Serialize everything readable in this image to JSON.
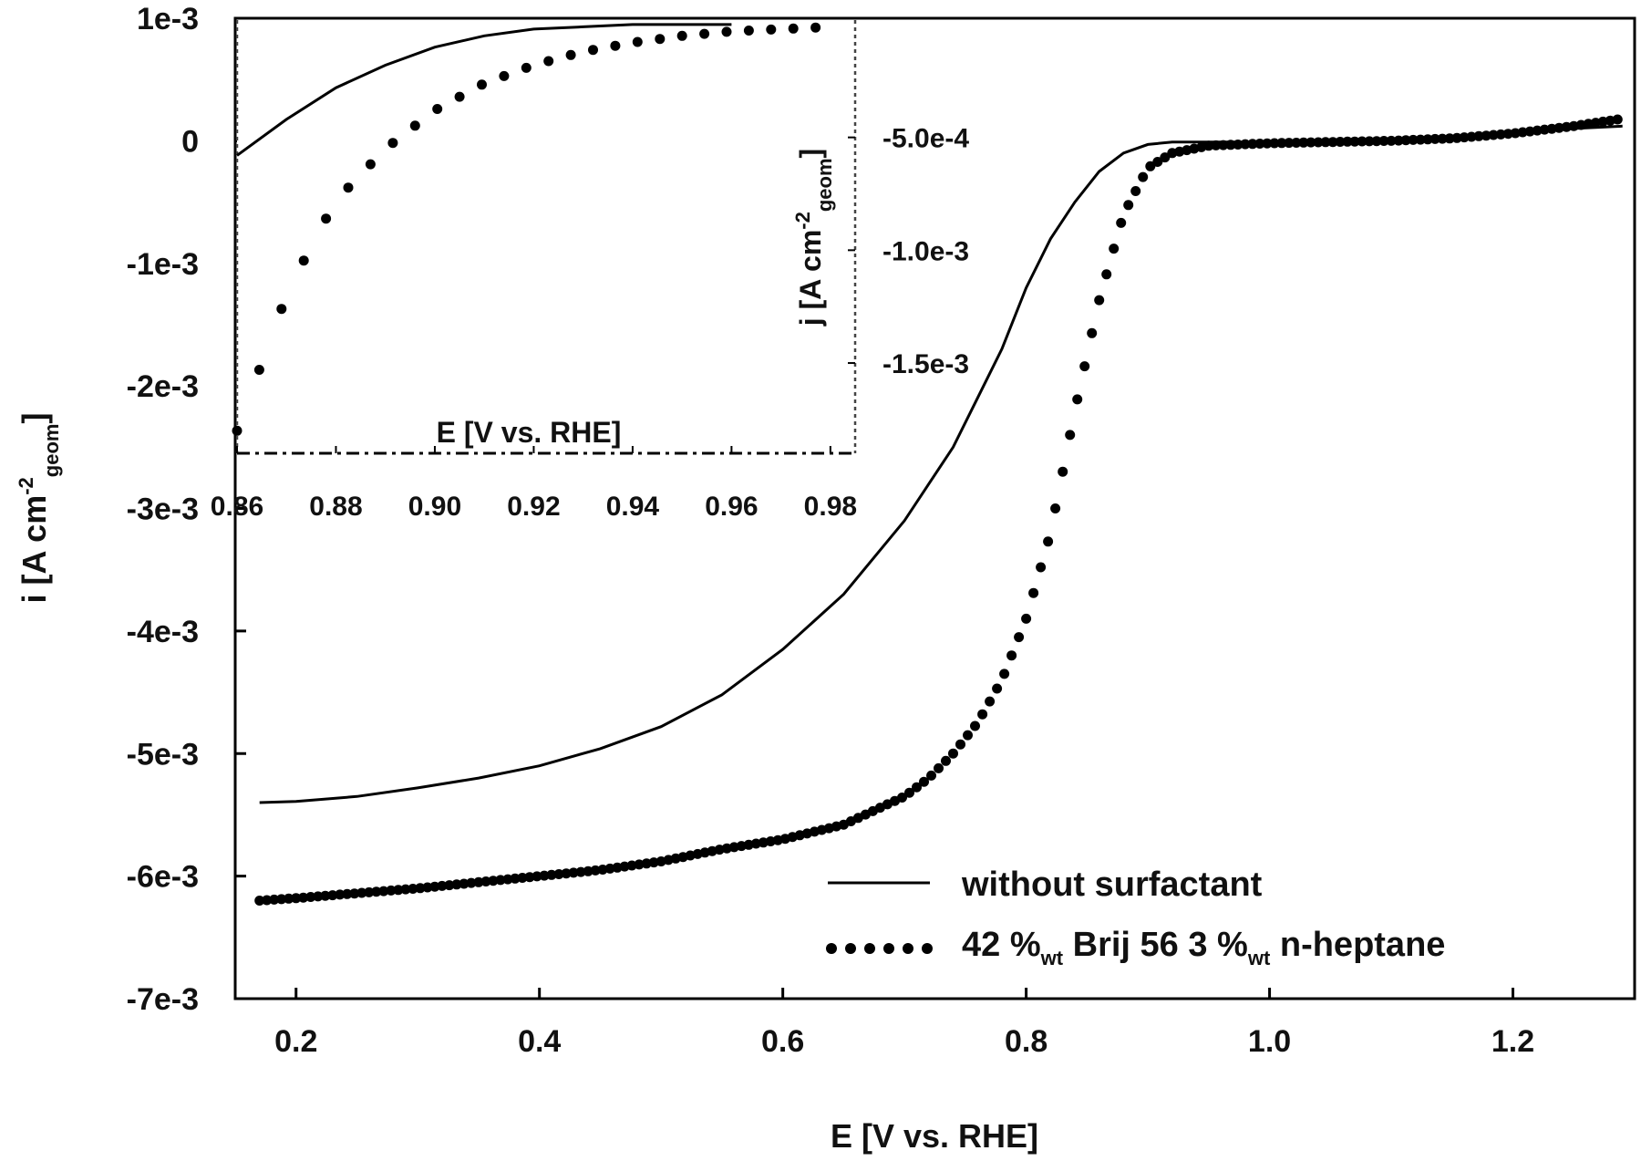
{
  "chart_data": [
    {
      "type": "line",
      "title": "",
      "xlabel": "E [V vs. RHE]",
      "ylabel": "i [A cm",
      "ylabel_sup": "-2",
      "ylabel_sub": "geom",
      "ylabel_end": "]",
      "xlim": [
        0.15,
        1.3
      ],
      "ylim": [
        -0.007,
        0.001
      ],
      "x_ticks": [
        0.2,
        0.4,
        0.6,
        0.8,
        1.0,
        1.2
      ],
      "x_tick_labels": [
        "0.2",
        "0.4",
        "0.6",
        "0.8",
        "1.0",
        "1.2"
      ],
      "y_ticks": [
        0.001,
        0,
        -0.001,
        -0.002,
        -0.003,
        -0.004,
        -0.005,
        -0.006,
        -0.007
      ],
      "y_tick_labels": [
        "1e-3",
        "0",
        "-1e-3",
        "-2e-3",
        "-3e-3",
        "-4e-3",
        "-5e-3",
        "-6e-3",
        "-7e-3"
      ],
      "grid": false,
      "legend_position": "bottom-right",
      "series": [
        {
          "name": "without surfactant",
          "style": "solid",
          "x": [
            0.17,
            0.2,
            0.25,
            0.3,
            0.35,
            0.4,
            0.45,
            0.5,
            0.55,
            0.6,
            0.65,
            0.7,
            0.72,
            0.74,
            0.76,
            0.78,
            0.8,
            0.82,
            0.84,
            0.86,
            0.88,
            0.9,
            0.92,
            0.95,
            1.0,
            1.05,
            1.1,
            1.15,
            1.2,
            1.25,
            1.29
          ],
          "y": [
            -0.0054,
            -0.00539,
            -0.00535,
            -0.00528,
            -0.0052,
            -0.0051,
            -0.00496,
            -0.00478,
            -0.00452,
            -0.00415,
            -0.0037,
            -0.0031,
            -0.0028,
            -0.0025,
            -0.0021,
            -0.0017,
            -0.0012,
            -0.0008,
            -0.0005,
            -0.00025,
            -0.0001,
            -3e-05,
            -1e-05,
            -1e-05,
            -1e-05,
            0.0,
            0.0,
            2e-05,
            5e-05,
            0.0001,
            0.00012
          ]
        },
        {
          "name": "42 %",
          "name_sub1": "wt",
          "name_mid": " Brij 56 3 %",
          "name_sub2": "wt",
          "name_end": " n-heptane",
          "style": "dotted",
          "x": [
            0.17,
            0.2,
            0.25,
            0.3,
            0.35,
            0.4,
            0.45,
            0.5,
            0.55,
            0.6,
            0.65,
            0.7,
            0.72,
            0.74,
            0.76,
            0.78,
            0.8,
            0.82,
            0.84,
            0.86,
            0.88,
            0.9,
            0.92,
            0.95,
            1.0,
            1.05,
            1.1,
            1.15,
            1.2,
            1.25,
            1.29
          ],
          "y": [
            -0.0062,
            -0.00618,
            -0.00614,
            -0.0061,
            -0.00605,
            -0.006,
            -0.00595,
            -0.00588,
            -0.00578,
            -0.0057,
            -0.00558,
            -0.00535,
            -0.0052,
            -0.005,
            -0.00475,
            -0.0044,
            -0.0039,
            -0.0032,
            -0.0022,
            -0.0013,
            -0.0006,
            -0.00022,
            -0.0001,
            -4e-05,
            -2e-05,
            -1e-05,
            0.0,
            2e-05,
            6e-05,
            0.00012,
            0.00018
          ]
        }
      ]
    },
    {
      "type": "line",
      "title": "",
      "xlabel": "E [V vs. RHE]",
      "ylabel": "j [A cm",
      "ylabel_sup": "-2",
      "ylabel_sub": "geom",
      "ylabel_end": "]",
      "xlim": [
        0.86,
        0.985
      ],
      "ylim": [
        -0.0019,
        2e-05
      ],
      "x_ticks": [
        0.86,
        0.88,
        0.9,
        0.92,
        0.94,
        0.96,
        0.98
      ],
      "x_tick_labels": [
        "0.86",
        "0.88",
        "0.90",
        "0.92",
        "0.94",
        "0.96",
        "0.98"
      ],
      "y_ticks": [
        -0.0005,
        -0.001,
        -0.0015
      ],
      "y_tick_labels": [
        "-5.0e-4",
        "-1.0e-3",
        "-1.5e-3"
      ],
      "grid": false,
      "series": [
        {
          "name": "without surfactant",
          "style": "solid",
          "x": [
            0.86,
            0.87,
            0.88,
            0.89,
            0.9,
            0.91,
            0.92,
            0.93,
            0.94,
            0.95,
            0.96
          ],
          "y": [
            -0.00058,
            -0.00042,
            -0.00028,
            -0.00018,
            -0.0001,
            -5e-05,
            -2e-05,
            -1e-05,
            0.0,
            0.0,
            0.0
          ]
        },
        {
          "name": "42 % Brij 56 3 % n-heptane",
          "style": "dotted",
          "x": [
            0.86,
            0.865,
            0.87,
            0.875,
            0.88,
            0.89,
            0.9,
            0.91,
            0.92,
            0.93,
            0.94,
            0.95,
            0.96,
            0.97,
            0.98
          ],
          "y": [
            -0.0018,
            -0.0015,
            -0.0012,
            -0.00098,
            -0.00078,
            -0.00055,
            -0.00038,
            -0.00026,
            -0.00018,
            -0.00012,
            -8e-05,
            -5e-05,
            -3e-05,
            -2e-05,
            -1e-05
          ]
        }
      ]
    }
  ]
}
